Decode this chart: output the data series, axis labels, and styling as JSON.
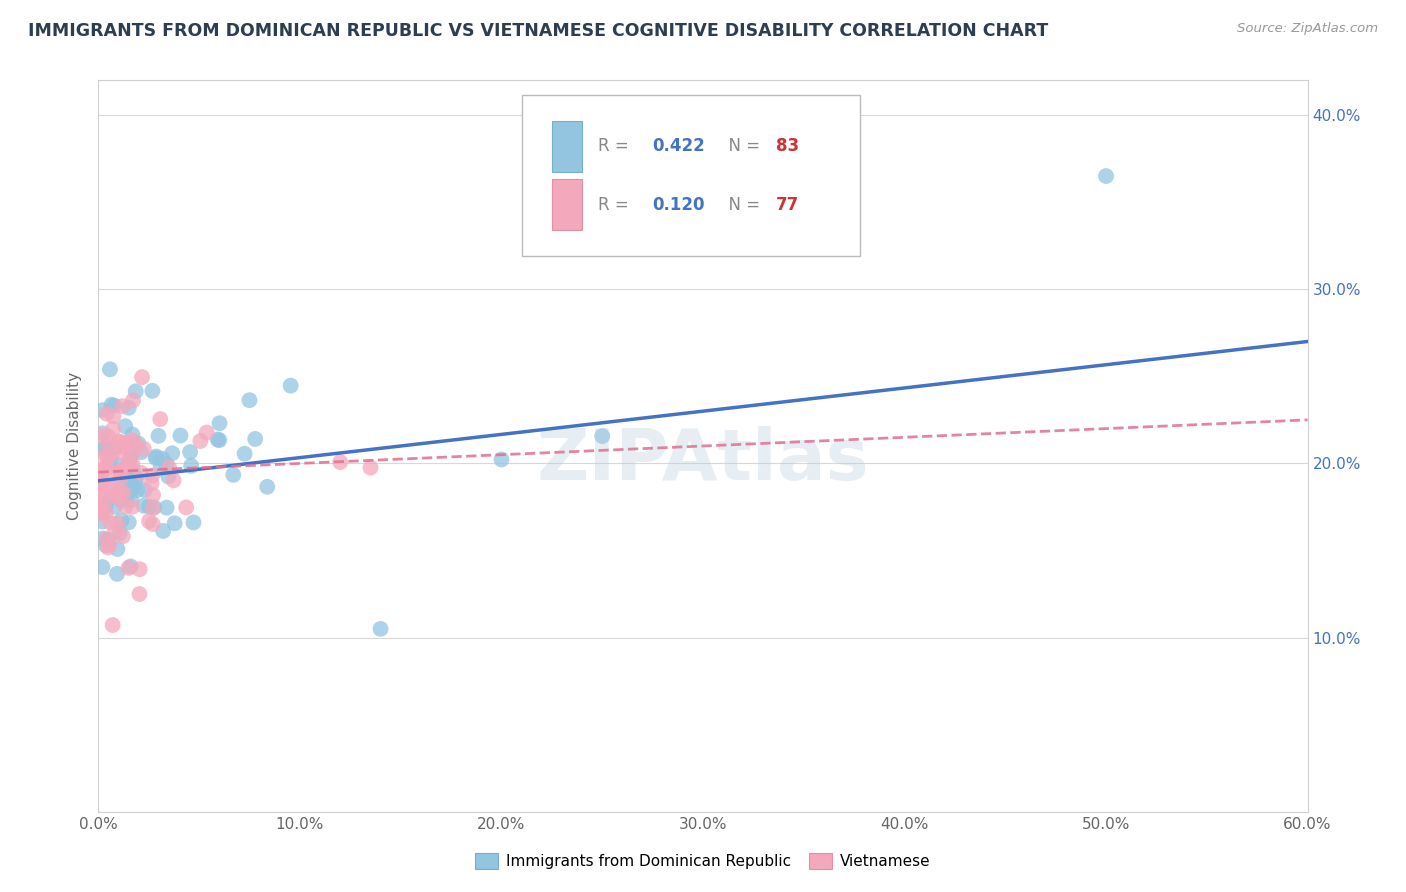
{
  "title": "IMMIGRANTS FROM DOMINICAN REPUBLIC VS VIETNAMESE COGNITIVE DISABILITY CORRELATION CHART",
  "source": "Source: ZipAtlas.com",
  "ylabel": "Cognitive Disability",
  "legend1_r": "0.422",
  "legend1_n": "83",
  "legend2_r": "0.120",
  "legend2_n": "77",
  "legend1_label": "Immigrants from Dominican Republic",
  "legend2_label": "Vietnamese",
  "color_blue": "#93c4e0",
  "color_pink": "#f4a8bc",
  "color_line_blue": "#4472c4",
  "color_line_pink": "#e07090",
  "watermark": "ZIPAtlas",
  "xlim": [
    0.0,
    60.0
  ],
  "ylim": [
    0.0,
    42.0
  ],
  "blue_line_start_y": 19.0,
  "blue_line_end_y": 27.0,
  "pink_line_start_y": 19.5,
  "pink_line_end_y": 22.5,
  "xtick_labels": [
    "0.0%",
    "10.0%",
    "20.0%",
    "30.0%",
    "40.0%",
    "50.0%",
    "60.0%"
  ],
  "xtick_vals": [
    0,
    10,
    20,
    30,
    40,
    50,
    60
  ],
  "ytick_vals": [
    0,
    10,
    20,
    30,
    40
  ],
  "ytick_labels_right": [
    "",
    "10.0%",
    "20.0%",
    "30.0%",
    "40.0%"
  ]
}
